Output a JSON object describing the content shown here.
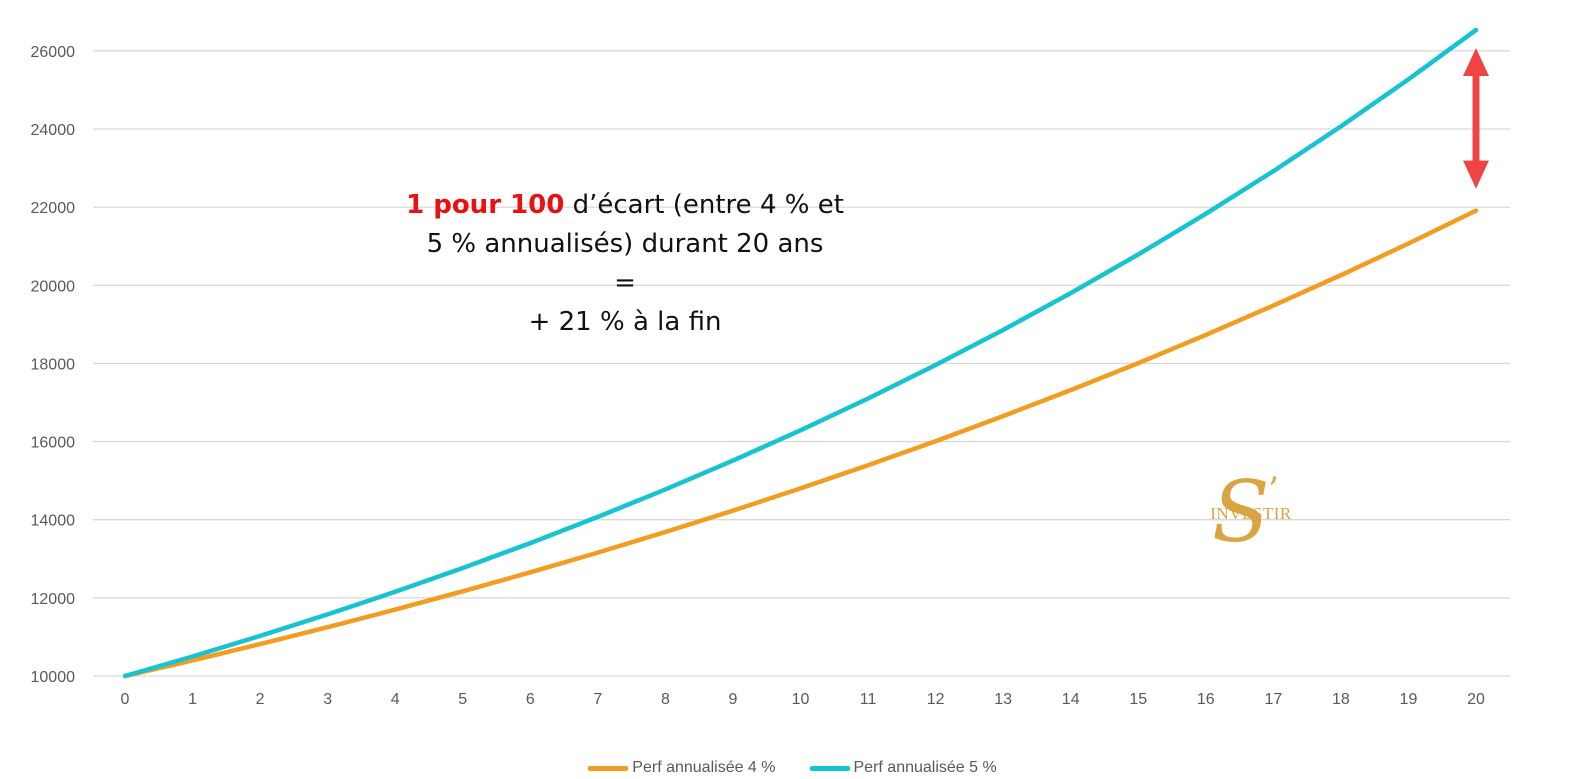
{
  "chart_data": {
    "type": "line",
    "x": [
      0,
      1,
      2,
      3,
      4,
      5,
      6,
      7,
      8,
      9,
      10,
      11,
      12,
      13,
      14,
      15,
      16,
      17,
      18,
      19,
      20
    ],
    "series": [
      {
        "name": "Perf annualisée 4 %",
        "color": "#F39C1F",
        "values": [
          10000,
          10400,
          10816,
          11249,
          11699,
          12167,
          12653,
          13159,
          13686,
          14233,
          14802,
          15395,
          16010,
          16651,
          17317,
          18009,
          18730,
          19479,
          20258,
          21068,
          21911
        ]
      },
      {
        "name": "Perf annualisée 5 %",
        "color": "#16C3D1",
        "values": [
          10000,
          10500,
          11025,
          11576,
          12155,
          12763,
          13401,
          14071,
          14775,
          15513,
          16289,
          17103,
          17959,
          18856,
          19799,
          20789,
          21829,
          22920,
          24066,
          25270,
          26533
        ]
      }
    ],
    "ylim": [
      10000,
      26533
    ],
    "yticks": [
      10000,
      12000,
      14000,
      16000,
      18000,
      20000,
      22000,
      24000,
      26000
    ],
    "grid": true,
    "legend_position": "bottom-center",
    "annotation": {
      "highlight": "1 pour 100",
      "highlight_color": "#E81010",
      "line1_rest": " d’écart (entre 4 % et",
      "line2": "5 % annualisés) durant 20 ans",
      "line3": "=",
      "line4": "+ 21 % à la fin"
    },
    "arrow": {
      "at_x": 20,
      "from_y": 21911,
      "to_y": 26533,
      "color": "#F04444"
    }
  },
  "logo": {
    "letter": "S",
    "apostrophe": "’",
    "word": "INVESTIR",
    "color": "#D9A441"
  }
}
